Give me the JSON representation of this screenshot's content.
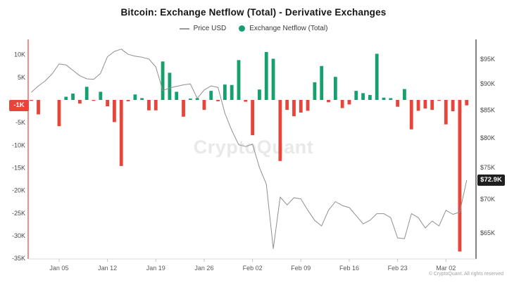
{
  "title": "Bitcoin: Exchange Netflow (Total) - Derivative Exchanges",
  "legend": [
    {
      "label": "Price USD",
      "type": "line"
    },
    {
      "label": "Exchange Netflow (Total)",
      "type": "dot"
    }
  ],
  "watermark": "CryptoQuant",
  "copyright": "© CryptoQuant. All rights reserved",
  "badges": {
    "netflow_current": "-1K",
    "price_current": "$72.9K"
  },
  "colors": {
    "bar_up": "#16a06e",
    "bar_down": "#e94439",
    "price_line": "#8f8f8f",
    "axis_left": "#e94439",
    "axis_right": "#2e2e2e",
    "axis_bottom": "#d9d9d9",
    "tick_mark": "#c4c4c4",
    "axis_text": "#454545",
    "x_text": "#5a5a5a",
    "badge_dark": "#1f1f1f",
    "legend_dash": "#9a9a9a"
  },
  "chart_data": {
    "type": "bar+line",
    "title": "Bitcoin: Exchange Netflow (Total) - Derivative Exchanges",
    "legend_position": "top",
    "grid": false,
    "x": [
      "Jan 01",
      "Jan 02",
      "Jan 03",
      "Jan 04",
      "Jan 05",
      "Jan 06",
      "Jan 07",
      "Jan 08",
      "Jan 09",
      "Jan 10",
      "Jan 11",
      "Jan 12",
      "Jan 13",
      "Jan 14",
      "Jan 15",
      "Jan 16",
      "Jan 17",
      "Jan 18",
      "Jan 19",
      "Jan 20",
      "Jan 21",
      "Jan 22",
      "Jan 23",
      "Jan 24",
      "Jan 25",
      "Jan 26",
      "Jan 27",
      "Jan 28",
      "Jan 29",
      "Jan 30",
      "Jan 31",
      "Feb 01",
      "Feb 02",
      "Feb 03",
      "Feb 04",
      "Feb 05",
      "Feb 06",
      "Feb 07",
      "Feb 08",
      "Feb 09",
      "Feb 10",
      "Feb 11",
      "Feb 12",
      "Feb 13",
      "Feb 14",
      "Feb 15",
      "Feb 16",
      "Feb 17",
      "Feb 18",
      "Feb 19",
      "Feb 20",
      "Feb 21",
      "Feb 22",
      "Feb 23",
      "Feb 24",
      "Feb 25",
      "Feb 26",
      "Feb 27",
      "Feb 28",
      "Mar 01",
      "Mar 02",
      "Mar 03",
      "Mar 04",
      "Mar 05"
    ],
    "series": [
      {
        "name": "Exchange Netflow (Total)",
        "type": "bar",
        "axis": "left",
        "values": [
          -0.2,
          -3.2,
          0,
          0,
          -5.8,
          0.7,
          1.4,
          -0.8,
          2.9,
          -0.2,
          1.8,
          -1.4,
          -4.9,
          -14.6,
          -0.3,
          1.2,
          0.4,
          -2.3,
          -2.3,
          8.5,
          6.0,
          1.8,
          -3.7,
          0.3,
          0.4,
          -2.2,
          2.0,
          -0.3,
          3.4,
          3.3,
          8.8,
          -0.4,
          -7.8,
          2.3,
          10.6,
          9.1,
          -13.5,
          -2.2,
          -3.6,
          -2.8,
          -2.4,
          3.9,
          7.5,
          -0.5,
          5.1,
          -1.8,
          -1.0,
          2.0,
          1.5,
          1.1,
          10.2,
          0.5,
          0.4,
          -1.5,
          2.4,
          -6.5,
          -2.4,
          -1.9,
          -2.2,
          -0.2,
          -5.4,
          -2.5,
          -33.5,
          -1.2
        ]
      },
      {
        "name": "Price USD",
        "type": "line",
        "axis": "right",
        "values": [
          88.4,
          89.6,
          90.6,
          92.0,
          94.0,
          93.8,
          92.7,
          91.6,
          91.0,
          90.9,
          92.1,
          95.5,
          96.6,
          97.1,
          96.0,
          95.6,
          95.4,
          95.0,
          93.4,
          88.7,
          89.2,
          89.5,
          89.8,
          90.0,
          87.2,
          88.8,
          89.6,
          89.3,
          84.4,
          81.3,
          78.8,
          78.5,
          78.9,
          75.0,
          72.3,
          62.8,
          70.3,
          69.1,
          70.2,
          70.0,
          68.3,
          66.8,
          66.0,
          68.3,
          69.6,
          69.0,
          68.7,
          67.5,
          66.3,
          66.8,
          67.8,
          67.8,
          67.2,
          64.3,
          64.2,
          67.8,
          67.2,
          65.7,
          66.7,
          66.0,
          68.3,
          67.7,
          68.0,
          72.9
        ]
      }
    ],
    "left_axis": {
      "range": [
        -35.5,
        13.4
      ],
      "current_value_label": "-1K",
      "ticks": [
        {
          "label": "10K",
          "value": 10
        },
        {
          "label": "5K",
          "value": 5
        },
        {
          "label": "-5K",
          "value": -5
        },
        {
          "label": "-10K",
          "value": -10
        },
        {
          "label": "-15K",
          "value": -15
        },
        {
          "label": "-20K",
          "value": -20
        },
        {
          "label": "-25K",
          "value": -25
        },
        {
          "label": "-30K",
          "value": -30
        },
        {
          "label": "-35K",
          "value": -35
        }
      ]
    },
    "right_axis": {
      "scale": "log",
      "range_thousands_usd": [
        62,
        97.5
      ],
      "current_value_label": "$72.9K",
      "ticks": [
        {
          "label": "$95K",
          "value": 95
        },
        {
          "label": "$90K",
          "value": 90
        },
        {
          "label": "$85K",
          "value": 85
        },
        {
          "label": "$80K",
          "value": 80
        },
        {
          "label": "$75K",
          "value": 75
        },
        {
          "label": "$70K",
          "value": 70
        },
        {
          "label": "$65K",
          "value": 65
        }
      ]
    },
    "x_axis": {
      "ticks": [
        {
          "label": "Jan 05",
          "index": 4
        },
        {
          "label": "Jan 12",
          "index": 11
        },
        {
          "label": "Jan 19",
          "index": 18
        },
        {
          "label": "Jan 26",
          "index": 25
        },
        {
          "label": "Feb 02",
          "index": 32
        },
        {
          "label": "Feb 09",
          "index": 39
        },
        {
          "label": "Feb 16",
          "index": 46
        },
        {
          "label": "Feb 23",
          "index": 53
        },
        {
          "label": "Mar 02",
          "index": 60
        }
      ]
    }
  }
}
